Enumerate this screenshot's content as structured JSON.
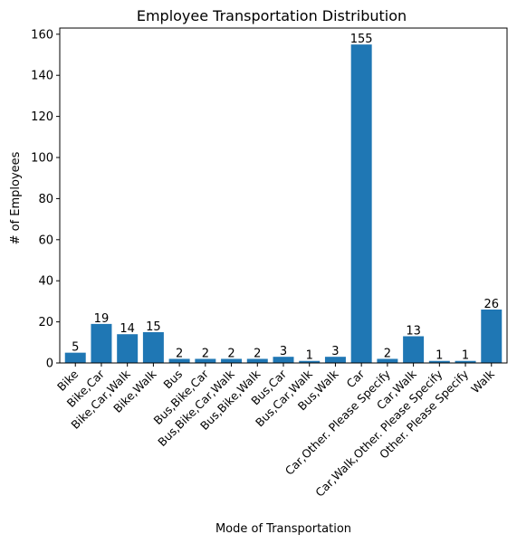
{
  "chart_data": {
    "type": "bar",
    "title": "Employee Transportation Distribution",
    "xlabel": "Mode of Transportation",
    "ylabel": "# of Employees",
    "categories": [
      "Bike",
      "Bike,Car",
      "Bike,Car,Walk",
      "Bike,Walk",
      "Bus",
      "Bus,Bike,Car",
      "Bus,Bike,Car,Walk",
      "Bus,Bike,Walk",
      "Bus,Car",
      "Bus,Car,Walk",
      "Bus,Walk",
      "Car",
      "Car,Other. Please Specify",
      "Car,Walk",
      "Car,Walk,Other. Please Specify",
      "Other. Please Specify",
      "Walk"
    ],
    "values": [
      5,
      19,
      14,
      15,
      2,
      2,
      2,
      2,
      3,
      1,
      3,
      155,
      2,
      13,
      1,
      1,
      26
    ],
    "ylim": [
      0,
      163
    ],
    "yticks": [
      0,
      20,
      40,
      60,
      80,
      100,
      120,
      140,
      160
    ],
    "grid": false,
    "legend": "none",
    "bar_color": "#1f77b4"
  }
}
